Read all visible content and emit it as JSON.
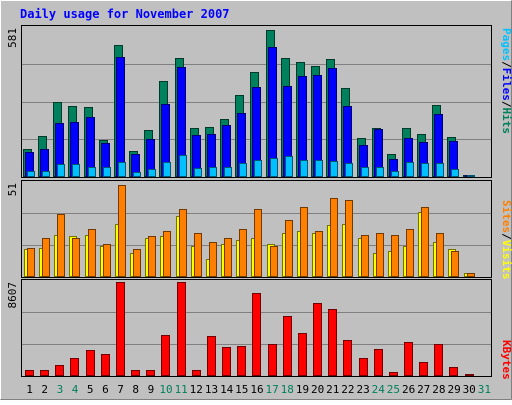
{
  "title": "Daily usage for November 2007",
  "colors": {
    "background": "#c0c0c0",
    "hits": "#00805c",
    "files": "#0000ff",
    "pages": "#00c0ff",
    "visits": "#ffff00",
    "sites": "#ff8000",
    "kbytes": "#ff0000",
    "weekend_label": "#00805c",
    "title_text": "#0000ff"
  },
  "chart_data": [
    {
      "type": "bar",
      "ymax_label": "581",
      "legend": [
        {
          "label": "Pages",
          "color": "#00c0ff"
        },
        {
          "label": "/",
          "color": "#000000"
        },
        {
          "label": "Files",
          "color": "#0000ff"
        },
        {
          "label": "/",
          "color": "#000000"
        },
        {
          "label": "Hits",
          "color": "#00805c"
        }
      ],
      "ylim": [
        0,
        581
      ],
      "categories": [
        "1",
        "2",
        "3",
        "4",
        "5",
        "6",
        "7",
        "8",
        "9",
        "10",
        "11",
        "12",
        "13",
        "14",
        "15",
        "16",
        "17",
        "18",
        "19",
        "20",
        "21",
        "22",
        "23",
        "24",
        "25",
        "26",
        "27",
        "28",
        "29",
        "30",
        "31"
      ],
      "series": [
        {
          "name": "Hits",
          "values": [
            110,
            158,
            294,
            278,
            273,
            145,
            513,
            102,
            182,
            374,
            464,
            190,
            196,
            227,
            320,
            408,
            575,
            464,
            450,
            432,
            460,
            346,
            153,
            192,
            90,
            192,
            166,
            282,
            157,
            7,
            0
          ]
        },
        {
          "name": "Files",
          "values": [
            96,
            110,
            210,
            216,
            235,
            134,
            467,
            90,
            148,
            286,
            430,
            165,
            167,
            204,
            248,
            350,
            508,
            355,
            392,
            398,
            426,
            276,
            125,
            186,
            72,
            152,
            138,
            244,
            140,
            3,
            0
          ]
        },
        {
          "name": "Pages",
          "values": [
            25,
            25,
            50,
            50,
            40,
            40,
            60,
            20,
            30,
            60,
            85,
            35,
            40,
            40,
            55,
            65,
            75,
            80,
            65,
            65,
            64,
            55,
            40,
            40,
            24,
            60,
            55,
            55,
            30,
            3,
            0
          ]
        }
      ]
    },
    {
      "type": "bar",
      "ymax_label": "51",
      "legend": [
        {
          "label": "Sites",
          "color": "#ff8000"
        },
        {
          "label": "/",
          "color": "#000000"
        },
        {
          "label": "Visits",
          "color": "#ffff00"
        }
      ],
      "ylim": [
        0,
        51
      ],
      "categories": [
        "1",
        "2",
        "3",
        "4",
        "5",
        "6",
        "7",
        "8",
        "9",
        "10",
        "11",
        "12",
        "13",
        "14",
        "15",
        "16",
        "17",
        "18",
        "19",
        "20",
        "21",
        "22",
        "23",
        "24",
        "25",
        "26",
        "27",
        "28",
        "29",
        "30",
        "31"
      ],
      "series": [
        {
          "name": "Visits",
          "values": [
            15,
            16,
            23,
            22,
            23,
            17,
            29,
            13,
            21,
            22,
            33,
            17,
            10,
            18,
            20,
            21,
            18,
            24,
            25,
            24,
            28,
            29,
            21,
            13,
            14,
            17,
            35,
            19,
            15,
            2,
            0
          ]
        },
        {
          "name": "Sites",
          "values": [
            16,
            21,
            34,
            21,
            26,
            18,
            50,
            15,
            22,
            25,
            37,
            24,
            19,
            21,
            26,
            37,
            17,
            31,
            38,
            25,
            43,
            42,
            23,
            24,
            23,
            26,
            38,
            24,
            14,
            2,
            0
          ]
        }
      ]
    },
    {
      "type": "bar",
      "ymax_label": "8607",
      "legend": [
        {
          "label": "KBytes",
          "color": "#ff0000"
        }
      ],
      "ylim": [
        0,
        8607
      ],
      "categories": [
        "1",
        "2",
        "3",
        "4",
        "5",
        "6",
        "7",
        "8",
        "9",
        "10",
        "11",
        "12",
        "13",
        "14",
        "15",
        "16",
        "17",
        "18",
        "19",
        "20",
        "21",
        "22",
        "23",
        "24",
        "25",
        "26",
        "27",
        "28",
        "29",
        "30",
        "31"
      ],
      "series": [
        {
          "name": "KBytes",
          "values": [
            560,
            560,
            970,
            1650,
            2390,
            1970,
            8600,
            550,
            560,
            3720,
            8640,
            560,
            3640,
            2620,
            2780,
            7630,
            2910,
            5500,
            3960,
            6670,
            6150,
            3320,
            1660,
            2470,
            350,
            3120,
            1320,
            2900,
            830,
            82,
            0
          ]
        }
      ]
    }
  ],
  "x_labels": [
    {
      "text": "1",
      "weekend": false
    },
    {
      "text": "2",
      "weekend": false
    },
    {
      "text": "3",
      "weekend": true
    },
    {
      "text": "4",
      "weekend": true
    },
    {
      "text": "5",
      "weekend": false
    },
    {
      "text": "6",
      "weekend": false
    },
    {
      "text": "7",
      "weekend": false
    },
    {
      "text": "8",
      "weekend": false
    },
    {
      "text": "9",
      "weekend": false
    },
    {
      "text": "10",
      "weekend": true
    },
    {
      "text": "11",
      "weekend": true
    },
    {
      "text": "12",
      "weekend": false
    },
    {
      "text": "13",
      "weekend": false
    },
    {
      "text": "14",
      "weekend": false
    },
    {
      "text": "15",
      "weekend": false
    },
    {
      "text": "16",
      "weekend": false
    },
    {
      "text": "17",
      "weekend": true
    },
    {
      "text": "18",
      "weekend": true
    },
    {
      "text": "19",
      "weekend": false
    },
    {
      "text": "20",
      "weekend": false
    },
    {
      "text": "21",
      "weekend": false
    },
    {
      "text": "22",
      "weekend": false
    },
    {
      "text": "23",
      "weekend": false
    },
    {
      "text": "24",
      "weekend": true
    },
    {
      "text": "25",
      "weekend": true
    },
    {
      "text": "26",
      "weekend": false
    },
    {
      "text": "27",
      "weekend": false
    },
    {
      "text": "28",
      "weekend": false
    },
    {
      "text": "29",
      "weekend": false
    },
    {
      "text": "30",
      "weekend": false
    },
    {
      "text": "31",
      "weekend": true
    }
  ]
}
